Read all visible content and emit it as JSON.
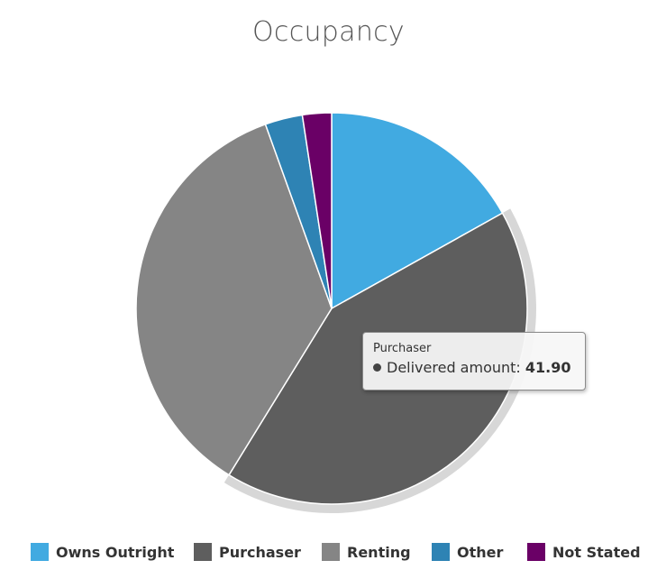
{
  "chart_data": {
    "type": "pie",
    "title": "Occupancy",
    "series_name": "Delivered amount",
    "categories": [
      "Owns Outright",
      "Purchaser",
      "Renting",
      "Other",
      "Not Stated"
    ],
    "values": [
      16.9,
      41.9,
      35.7,
      3.1,
      2.4
    ],
    "colors": [
      "#41aae1",
      "#5e5e5e",
      "#858585",
      "#2e83b4",
      "#6a0066"
    ],
    "hovered_index": 1,
    "legend": {
      "placement": "bottom-center"
    },
    "tooltip": {
      "category": "Purchaser",
      "series": "Delivered amount",
      "value_text": "41.90"
    }
  }
}
